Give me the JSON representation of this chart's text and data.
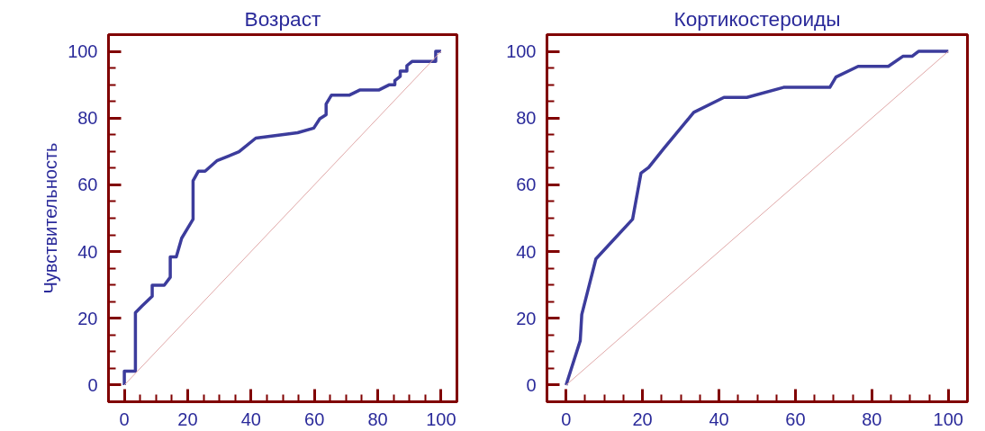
{
  "chart_data": [
    {
      "type": "line",
      "title": "Возраст",
      "ylabel": "Чувствительность",
      "xlim": [
        -5,
        105
      ],
      "ylim": [
        -5,
        105
      ],
      "xticks": [
        0,
        20,
        40,
        60,
        80,
        100
      ],
      "yticks": [
        0,
        20,
        40,
        60,
        80,
        100
      ],
      "grid": false,
      "marker": "none",
      "line_style": "solid",
      "series": [
        {
          "color": "#3c3c9c",
          "x": [
            0,
            0,
            3.5,
            3.5,
            5.6,
            8.8,
            8.8,
            12.6,
            14.5,
            14.5,
            16.4,
            18.1,
            21.7,
            21.7,
            23.4,
            25.5,
            29.2,
            36.2,
            41.5,
            54.7,
            59.8,
            61.7,
            63.7,
            63.7,
            65.4,
            71.1,
            74.3,
            80.3,
            83.7,
            85.4,
            85.4,
            87.1,
            87.1,
            89.2,
            89.2,
            90.9,
            98.3,
            98.3,
            100
          ],
          "values": [
            0,
            4.2,
            4.2,
            21.7,
            23.7,
            26.6,
            29.9,
            29.9,
            32.3,
            38.4,
            38.4,
            44,
            49.7,
            61.2,
            64.1,
            64.1,
            67.2,
            69.9,
            74,
            75.6,
            77,
            79.8,
            81,
            84.2,
            86.9,
            86.9,
            88.4,
            88.4,
            90,
            90,
            91.2,
            92.5,
            94.1,
            94.1,
            95.7,
            97,
            97,
            100,
            100
          ]
        },
        {
          "color": "#e0a8a8",
          "x": [
            0,
            100
          ],
          "values": [
            0,
            100
          ]
        }
      ]
    },
    {
      "type": "line",
      "title": "Кортикостероиды",
      "xlim": [
        -5,
        105
      ],
      "ylim": [
        -5,
        105
      ],
      "xticks": [
        0,
        20,
        40,
        60,
        80,
        100
      ],
      "yticks": [
        0,
        20,
        40,
        60,
        80,
        100
      ],
      "grid": false,
      "marker": "none",
      "line_style": "solid",
      "series": [
        {
          "color": "#3c3c9c",
          "x": [
            0,
            3.7,
            4.1,
            7.8,
            17.4,
            19.6,
            21.6,
            25.5,
            33.4,
            41.3,
            47.3,
            56.9,
            69,
            70.6,
            76.4,
            84.3,
            88.1,
            90.5,
            92.2,
            100
          ],
          "values": [
            0,
            13.3,
            21.1,
            37.8,
            49.7,
            63.5,
            65.2,
            70.8,
            81.7,
            86.2,
            86.2,
            89.2,
            89.2,
            92.3,
            95.5,
            95.5,
            98.5,
            98.5,
            100,
            100
          ]
        },
        {
          "color": "#e0a8a8",
          "x": [
            0,
            100
          ],
          "values": [
            0,
            100
          ]
        }
      ]
    }
  ]
}
